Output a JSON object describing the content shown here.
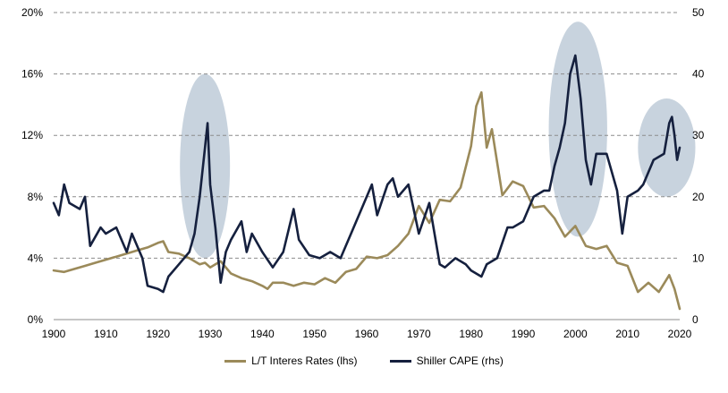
{
  "chart_data": {
    "type": "line",
    "x_range": [
      1900,
      2020
    ],
    "x_ticks": [
      "1900",
      "1910",
      "1920",
      "1930",
      "1940",
      "1950",
      "1960",
      "1970",
      "1980",
      "1990",
      "2000",
      "2010",
      "2020"
    ],
    "y_left": {
      "range": [
        0,
        20
      ],
      "ticks": [
        "0%",
        "4%",
        "8%",
        "12%",
        "16%",
        "20%"
      ]
    },
    "y_right": {
      "range": [
        0,
        50
      ],
      "ticks": [
        "0",
        "10",
        "20",
        "30",
        "40",
        "50"
      ]
    },
    "grid": "horizontal dashed",
    "legend_position": "bottom",
    "highlight_ellipses": [
      {
        "center_year": 1929,
        "center_cape": 25,
        "half_width_years": 4.8,
        "half_height_cape": 15
      },
      {
        "center_year": 2000.5,
        "center_cape": 31,
        "half_width_years": 5.6,
        "half_height_cape": 17.5
      },
      {
        "center_year": 2017.5,
        "center_cape": 28,
        "half_width_years": 5.5,
        "half_height_cape": 8
      }
    ],
    "series": [
      {
        "name": "L/T Interes Rates (lhs)",
        "axis": "left",
        "color": "#9B8A5A",
        "x": [
          1900,
          1902,
          1904,
          1906,
          1908,
          1910,
          1912,
          1914,
          1916,
          1918,
          1920,
          1921,
          1922,
          1924,
          1926,
          1928,
          1929,
          1930,
          1932,
          1934,
          1936,
          1938,
          1940,
          1941,
          1942,
          1944,
          1946,
          1948,
          1950,
          1952,
          1954,
          1956,
          1958,
          1960,
          1962,
          1964,
          1966,
          1968,
          1970,
          1972,
          1974,
          1976,
          1978,
          1980,
          1981,
          1982,
          1983,
          1984,
          1986,
          1988,
          1990,
          1992,
          1994,
          1996,
          1998,
          2000,
          2002,
          2004,
          2006,
          2008,
          2010,
          2012,
          2014,
          2016,
          2018,
          2019,
          2020
        ],
        "y": [
          3.2,
          3.1,
          3.3,
          3.5,
          3.7,
          3.9,
          4.1,
          4.3,
          4.5,
          4.7,
          5.0,
          5.1,
          4.4,
          4.3,
          4.0,
          3.6,
          3.7,
          3.4,
          3.8,
          3.0,
          2.7,
          2.5,
          2.2,
          2.0,
          2.4,
          2.4,
          2.2,
          2.4,
          2.3,
          2.7,
          2.4,
          3.1,
          3.3,
          4.1,
          4.0,
          4.2,
          4.8,
          5.6,
          7.4,
          6.3,
          7.8,
          7.7,
          8.6,
          11.3,
          13.9,
          14.8,
          11.2,
          12.4,
          8.1,
          9.0,
          8.7,
          7.3,
          7.4,
          6.6,
          5.4,
          6.1,
          4.8,
          4.6,
          4.8,
          3.7,
          3.5,
          1.8,
          2.4,
          1.8,
          2.9,
          2.0,
          0.7
        ]
      },
      {
        "name": "Shiller CAPE (rhs)",
        "axis": "right",
        "color": "#15203E",
        "x": [
          1900,
          1901,
          1902,
          1903,
          1905,
          1906,
          1907,
          1909,
          1910,
          1912,
          1914,
          1915,
          1917,
          1918,
          1920,
          1921,
          1922,
          1924,
          1926,
          1927,
          1928,
          1929,
          1929.5,
          1930,
          1931,
          1932,
          1933,
          1934,
          1936,
          1937,
          1938,
          1940,
          1942,
          1944,
          1946,
          1947,
          1949,
          1951,
          1953,
          1955,
          1957,
          1959,
          1961,
          1962,
          1964,
          1965,
          1966,
          1968,
          1970,
          1972,
          1974,
          1975,
          1977,
          1979,
          1980,
          1982,
          1983,
          1985,
          1987,
          1988,
          1990,
          1992,
          1994,
          1995,
          1996,
          1997,
          1998,
          1999,
          2000,
          2001,
          2002,
          2003,
          2004,
          2006,
          2008,
          2009,
          2010,
          2012,
          2013,
          2015,
          2017,
          2018,
          2018.5,
          2019,
          2019.5,
          2020
        ],
        "y": [
          19,
          17,
          22,
          19,
          18,
          20,
          12,
          15,
          14,
          15,
          11,
          14,
          10,
          5.5,
          5,
          4.5,
          7,
          9,
          11,
          14,
          20,
          28,
          32,
          22,
          15,
          6,
          11,
          13,
          16,
          11,
          14,
          11,
          8.5,
          11,
          18,
          13,
          10.5,
          10,
          11,
          10,
          14,
          18,
          22,
          17,
          22,
          23,
          20,
          22,
          14,
          19,
          9,
          8.5,
          10,
          9,
          8,
          7,
          9,
          10,
          15,
          15,
          16,
          20,
          21,
          21,
          25,
          28,
          32,
          40,
          43,
          36,
          26,
          22,
          27,
          27,
          21,
          14,
          20,
          21,
          22,
          26,
          27,
          32,
          33,
          30,
          26,
          28
        ]
      }
    ]
  }
}
